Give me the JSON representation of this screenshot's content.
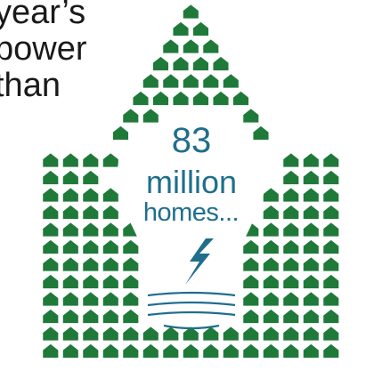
{
  "headline": {
    "lines": [
      "year’s",
      "power",
      "than"
    ]
  },
  "stat": {
    "number": "83",
    "unit": "million",
    "subject": "homes..."
  },
  "colors": {
    "house_icon": "#1f7a3a",
    "text_dark": "#1a1a1a",
    "text_accent": "#1f6e8c"
  },
  "icons": {
    "repeated": "house-icon",
    "center": "lightbulb-icon",
    "bolt": "lightning-bolt-icon"
  }
}
